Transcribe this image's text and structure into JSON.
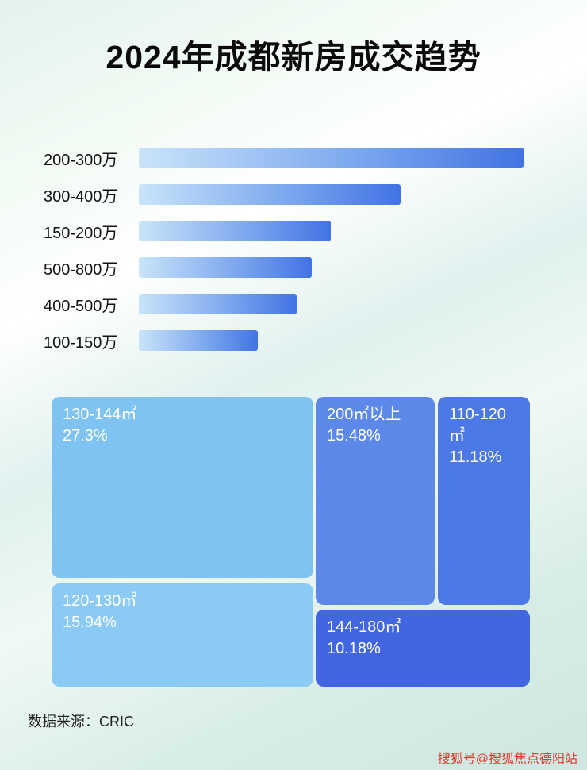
{
  "title": "2024年成都新房成交趋势",
  "source": "数据来源：CRIC",
  "watermark": "搜狐号@搜狐焦点德阳站",
  "chart_data": [
    {
      "type": "bar",
      "orientation": "horizontal",
      "categories": [
        "200-300万",
        "300-400万",
        "150-200万",
        "500-800万",
        "400-500万",
        "100-150万"
      ],
      "values": [
        100,
        68,
        50,
        45,
        41,
        31
      ],
      "value_note": "relative bar lengths estimated from pixels; no numeric axis shown",
      "bar_color_gradient": [
        "#c9e4f9",
        "#4273e3"
      ],
      "grid": false,
      "legend": false
    },
    {
      "type": "treemap",
      "items": [
        {
          "label": "130-144㎡",
          "value": 27.3,
          "display": "27.3%",
          "color": "#7ec3f2"
        },
        {
          "label": "120-130㎡",
          "value": 15.94,
          "display": "15.94%",
          "color": "#8acaf4"
        },
        {
          "label": "200㎡以上",
          "value": 15.48,
          "display": "15.48%",
          "color": "#5b88e9"
        },
        {
          "label": "110-120㎡",
          "value": 11.18,
          "display": "11.18%",
          "color": "#4d79e6"
        },
        {
          "label": "144-180㎡",
          "value": 10.18,
          "display": "10.18%",
          "color": "#4266df"
        }
      ]
    }
  ]
}
